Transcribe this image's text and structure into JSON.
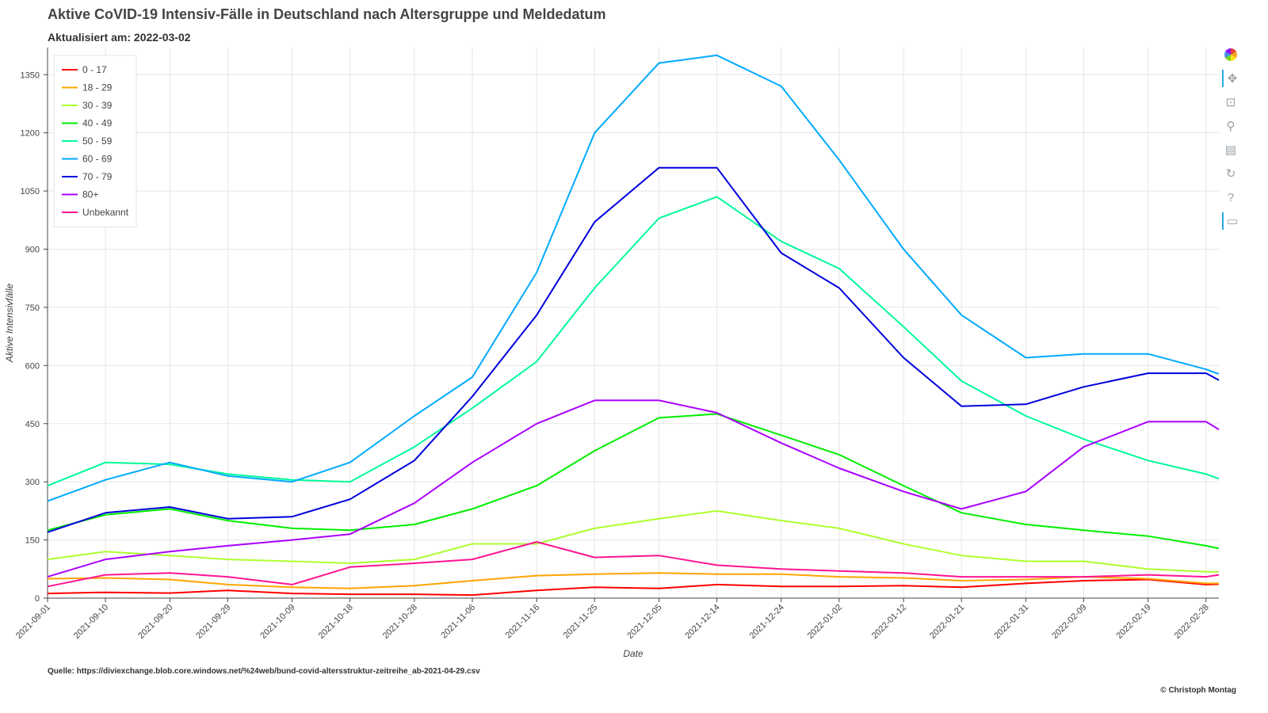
{
  "header": {
    "title": "Aktive CoVID-19 Intensiv-Fälle in Deutschland nach Altersgruppe und Meldedatum",
    "subtitle": "Aktualisiert am: 2022-03-02"
  },
  "footer": {
    "source": "Quelle: https://diviexchange.blob.core.windows.net/%24web/bund-covid-altersstruktur-zeitreihe_ab-2021-04-29.csv",
    "credit": "© Christoph Montag"
  },
  "toolbar": {
    "items": [
      "logo-icon",
      "pan-icon",
      "box-zoom-icon",
      "wheel-zoom-icon",
      "save-icon",
      "reset-icon",
      "help-icon",
      "hover-icon"
    ]
  },
  "chart_data": {
    "type": "line",
    "title": "Aktive CoVID-19 Intensiv-Fälle in Deutschland nach Altersgruppe und Meldedatum",
    "subtitle": "Aktualisiert am: 2022-03-02",
    "xlabel": "Date",
    "ylabel": "Aktive Intensivfälle",
    "x_start": "2021-09-01",
    "x_end": "2022-03-02",
    "ylim": [
      0,
      1420
    ],
    "yticks": [
      0,
      150,
      300,
      450,
      600,
      750,
      900,
      1050,
      1200,
      1350
    ],
    "xticks": [
      "2021-09-01",
      "2021-09-10",
      "2021-09-20",
      "2021-09-29",
      "2021-10-09",
      "2021-10-18",
      "2021-10-28",
      "2021-11-06",
      "2021-11-16",
      "2021-11-25",
      "2021-12-05",
      "2021-12-14",
      "2021-12-24",
      "2022-01-02",
      "2022-01-12",
      "2022-01-21",
      "2022-01-31",
      "2022-02-09",
      "2022-02-19",
      "2022-02-28"
    ],
    "grid": true,
    "legend_position": "top-left",
    "series": [
      {
        "name": "0 - 17",
        "color": "#ff0000",
        "x": [
          "2021-09-01",
          "2021-09-10",
          "2021-09-20",
          "2021-09-29",
          "2021-10-09",
          "2021-10-18",
          "2021-10-28",
          "2021-11-06",
          "2021-11-16",
          "2021-11-25",
          "2021-12-05",
          "2021-12-14",
          "2021-12-24",
          "2022-01-02",
          "2022-01-12",
          "2022-01-21",
          "2022-01-31",
          "2022-02-09",
          "2022-02-19",
          "2022-02-28",
          "2022-03-02"
        ],
        "values": [
          12,
          15,
          13,
          20,
          12,
          10,
          10,
          8,
          20,
          28,
          25,
          35,
          30,
          30,
          32,
          28,
          38,
          45,
          48,
          35,
          36
        ]
      },
      {
        "name": "18 - 29",
        "color": "#ffa500",
        "x": [
          "2021-09-01",
          "2021-09-10",
          "2021-09-20",
          "2021-09-29",
          "2021-10-09",
          "2021-10-18",
          "2021-10-28",
          "2021-11-06",
          "2021-11-16",
          "2021-11-25",
          "2021-12-05",
          "2021-12-14",
          "2021-12-24",
          "2022-01-02",
          "2022-01-12",
          "2022-01-21",
          "2022-01-31",
          "2022-02-09",
          "2022-02-19",
          "2022-02-28",
          "2022-03-02"
        ],
        "values": [
          50,
          52,
          48,
          35,
          28,
          25,
          32,
          45,
          58,
          62,
          65,
          62,
          62,
          55,
          52,
          45,
          48,
          55,
          50,
          38,
          38
        ]
      },
      {
        "name": "30 - 39",
        "color": "#adff2f",
        "x": [
          "2021-09-01",
          "2021-09-10",
          "2021-09-20",
          "2021-09-29",
          "2021-10-09",
          "2021-10-18",
          "2021-10-28",
          "2021-11-06",
          "2021-11-16",
          "2021-11-25",
          "2021-12-05",
          "2021-12-14",
          "2021-12-24",
          "2022-01-02",
          "2022-01-12",
          "2022-01-21",
          "2022-01-31",
          "2022-02-09",
          "2022-02-19",
          "2022-02-28",
          "2022-03-02"
        ],
        "values": [
          100,
          120,
          110,
          100,
          95,
          90,
          100,
          140,
          140,
          180,
          205,
          225,
          200,
          180,
          140,
          110,
          95,
          95,
          75,
          68,
          68
        ]
      },
      {
        "name": "40 - 49",
        "color": "#00ee00",
        "x": [
          "2021-09-01",
          "2021-09-10",
          "2021-09-20",
          "2021-09-29",
          "2021-10-09",
          "2021-10-18",
          "2021-10-28",
          "2021-11-06",
          "2021-11-16",
          "2021-11-25",
          "2021-12-05",
          "2021-12-14",
          "2021-12-24",
          "2022-01-02",
          "2022-01-12",
          "2022-01-21",
          "2022-01-31",
          "2022-02-09",
          "2022-02-19",
          "2022-02-28",
          "2022-03-02"
        ],
        "values": [
          175,
          215,
          230,
          200,
          180,
          175,
          190,
          230,
          290,
          380,
          465,
          475,
          420,
          370,
          290,
          220,
          190,
          175,
          160,
          135,
          128
        ]
      },
      {
        "name": "50 - 59",
        "color": "#00fa9a",
        "x": [
          "2021-09-01",
          "2021-09-10",
          "2021-09-20",
          "2021-09-29",
          "2021-10-09",
          "2021-10-18",
          "2021-10-28",
          "2021-11-06",
          "2021-11-16",
          "2021-11-25",
          "2021-12-05",
          "2021-12-14",
          "2021-12-24",
          "2022-01-02",
          "2022-01-12",
          "2022-01-21",
          "2022-01-31",
          "2022-02-09",
          "2022-02-19",
          "2022-02-28",
          "2022-03-02"
        ],
        "values": [
          290,
          350,
          345,
          320,
          305,
          300,
          390,
          490,
          610,
          800,
          980,
          1035,
          920,
          850,
          700,
          560,
          470,
          410,
          355,
          320,
          308
        ]
      },
      {
        "name": "60 - 69",
        "color": "#00aaff",
        "x": [
          "2021-09-01",
          "2021-09-10",
          "2021-09-20",
          "2021-09-29",
          "2021-10-09",
          "2021-10-18",
          "2021-10-28",
          "2021-11-06",
          "2021-11-16",
          "2021-11-25",
          "2021-12-05",
          "2021-12-14",
          "2021-12-24",
          "2022-01-02",
          "2022-01-12",
          "2022-01-21",
          "2022-01-31",
          "2022-02-09",
          "2022-02-19",
          "2022-02-28",
          "2022-03-02"
        ],
        "values": [
          250,
          305,
          350,
          315,
          300,
          350,
          470,
          570,
          840,
          1200,
          1380,
          1400,
          1320,
          1130,
          900,
          730,
          620,
          630,
          630,
          590,
          578
        ]
      },
      {
        "name": "70 - 79",
        "color": "#0000dd",
        "x": [
          "2021-09-01",
          "2021-09-10",
          "2021-09-20",
          "2021-09-29",
          "2021-10-09",
          "2021-10-18",
          "2021-10-28",
          "2021-11-06",
          "2021-11-16",
          "2021-11-25",
          "2021-12-05",
          "2021-12-14",
          "2021-12-24",
          "2022-01-02",
          "2022-01-12",
          "2022-01-21",
          "2022-01-31",
          "2022-02-09",
          "2022-02-19",
          "2022-02-28",
          "2022-03-02"
        ],
        "values": [
          170,
          220,
          235,
          205,
          210,
          255,
          355,
          520,
          730,
          970,
          1110,
          1110,
          890,
          800,
          620,
          495,
          500,
          545,
          580,
          580,
          562
        ]
      },
      {
        "name": "80+",
        "color": "#aa00ff",
        "x": [
          "2021-09-01",
          "2021-09-10",
          "2021-09-20",
          "2021-09-29",
          "2021-10-09",
          "2021-10-18",
          "2021-10-28",
          "2021-11-06",
          "2021-11-16",
          "2021-11-25",
          "2021-12-05",
          "2021-12-14",
          "2021-12-24",
          "2022-01-02",
          "2022-01-12",
          "2022-01-21",
          "2022-01-31",
          "2022-02-09",
          "2022-02-19",
          "2022-02-28",
          "2022-03-02"
        ],
        "values": [
          55,
          100,
          120,
          135,
          150,
          165,
          245,
          350,
          450,
          510,
          510,
          478,
          400,
          335,
          275,
          230,
          275,
          390,
          455,
          455,
          435
        ]
      },
      {
        "name": "Unbekannt",
        "color": "#ff1493",
        "x": [
          "2021-09-01",
          "2021-09-10",
          "2021-09-20",
          "2021-09-29",
          "2021-10-09",
          "2021-10-18",
          "2021-10-28",
          "2021-11-06",
          "2021-11-16",
          "2021-11-25",
          "2021-12-05",
          "2021-12-14",
          "2021-12-24",
          "2022-01-02",
          "2022-01-12",
          "2022-01-21",
          "2022-01-31",
          "2022-02-09",
          "2022-02-19",
          "2022-02-28",
          "2022-03-02"
        ],
        "values": [
          30,
          60,
          65,
          55,
          35,
          80,
          90,
          100,
          145,
          105,
          110,
          85,
          75,
          70,
          65,
          55,
          55,
          55,
          60,
          55,
          60
        ]
      }
    ]
  }
}
